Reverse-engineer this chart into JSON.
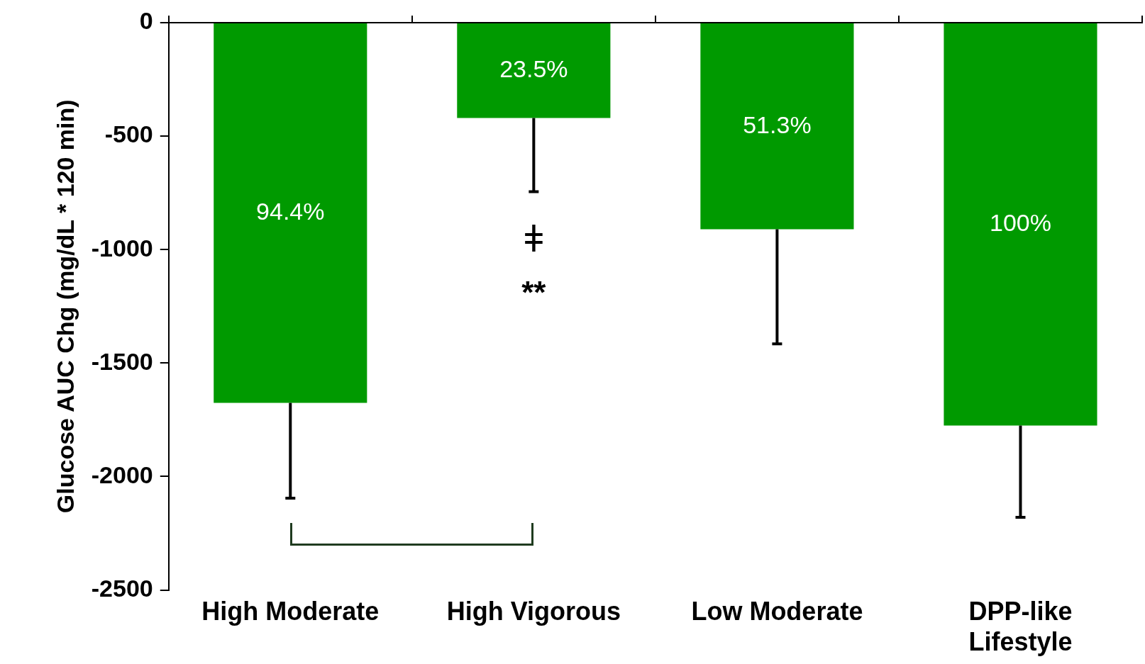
{
  "chart_data": {
    "type": "bar",
    "ylabel": "Glucose AUC Chg (mg/dL * 120 min)",
    "categories": [
      "High Moderate",
      "High Vigorous",
      "Low Moderate",
      "DPP-like\nLifestyle"
    ],
    "values": [
      -1675,
      -420,
      -910,
      -1775
    ],
    "errors": [
      [
        -2095,
        -1675
      ],
      [
        -745,
        -420
      ],
      [
        -1415,
        -910
      ],
      [
        -2180,
        -1775
      ]
    ],
    "color": "#009a00",
    "ylim": [
      -2500,
      0
    ],
    "yticks": [
      0,
      -500,
      -1000,
      -1500,
      -2000,
      -2500
    ],
    "grid": false,
    "legend": false,
    "annotations": [
      "94.4%",
      "23.5%",
      "51.3%",
      "100%",
      "ǂ",
      "**"
    ]
  }
}
